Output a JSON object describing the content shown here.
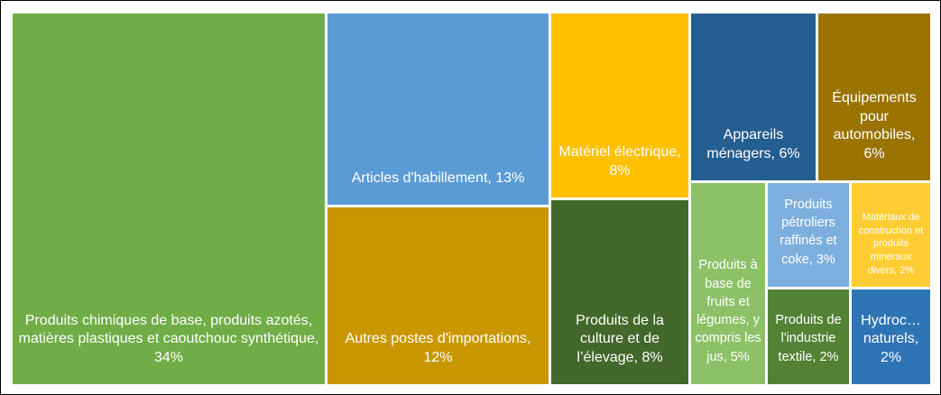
{
  "chart_data": {
    "type": "treemap",
    "items": [
      {
        "label": "Produits chimiques de base, produits azotés, matières plastiques et caoutchouc synthétique, 34%",
        "value": 34,
        "color": "#70ad47"
      },
      {
        "label": "Articles d'habillement, 13%",
        "value": 13,
        "color": "#5b9bd5"
      },
      {
        "label": "Autres postes d'importations, 12%",
        "value": 12,
        "color": "#c99800"
      },
      {
        "label": "Matériel électrique, 8%",
        "value": 8,
        "color": "#ffc000"
      },
      {
        "label": "Produits de la culture et de l’élevage, 8%",
        "value": 8,
        "color": "#43682b"
      },
      {
        "label": "Appareils ménagers, 6%",
        "value": 6,
        "color": "#255e91"
      },
      {
        "label": "Équipements pour automobiles, 6%",
        "value": 6,
        "color": "#9a7300"
      },
      {
        "label": "Produits à base de fruits et légumes, y compris les jus, 5%",
        "value": 5,
        "color": "#8cc168"
      },
      {
        "label": "Produits pétroliers raffinés et coke, 3%",
        "value": 3,
        "color": "#7cafdd"
      },
      {
        "label": "Matériaux de construction et produits minéraux divers, 2%",
        "value": 2,
        "color": "#ffcd33"
      },
      {
        "label": "Produits de l'industrie textile, 2%",
        "value": 2,
        "color": "#548235"
      },
      {
        "label": "Hydroc… naturels, 2%",
        "value": 2,
        "color": "#2e75b6"
      }
    ]
  }
}
